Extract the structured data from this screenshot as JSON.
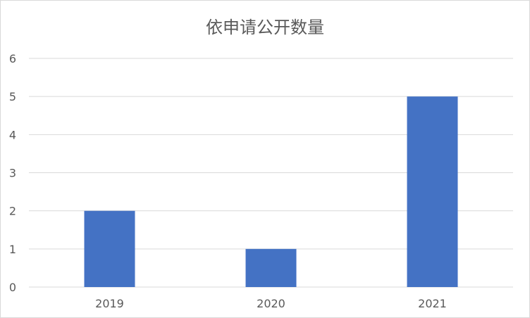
{
  "chart_data": {
    "type": "bar",
    "title": "依申请公开数量",
    "categories": [
      "2019",
      "2020",
      "2021"
    ],
    "values": [
      2,
      1,
      5
    ],
    "ylim": [
      0,
      6
    ],
    "yticks": [
      0,
      1,
      2,
      3,
      4,
      5,
      6
    ],
    "grid": true,
    "colors": {
      "bar": "#4472C4",
      "grid": "#d9d9d9",
      "text": "#595959"
    }
  }
}
